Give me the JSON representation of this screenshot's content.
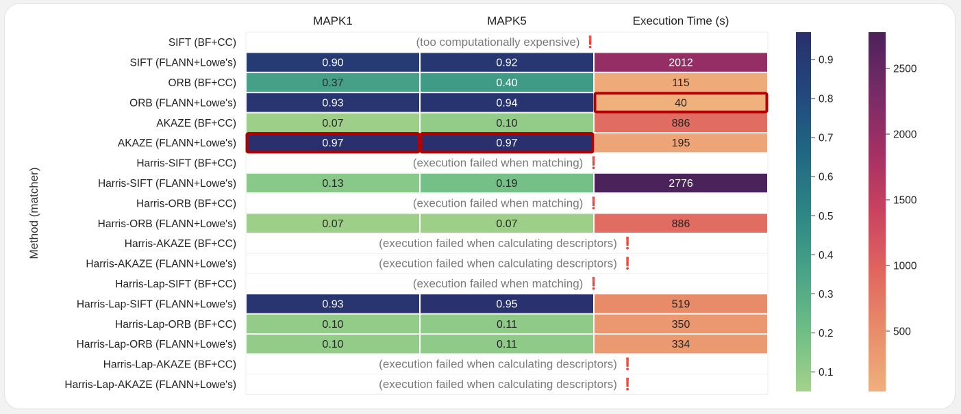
{
  "chart_data": {
    "type": "heatmap",
    "ylabel": "Method (matcher)",
    "columns": [
      "MAPK1",
      "MAPK5",
      "Execution Time (s)"
    ],
    "rows": [
      "SIFT (BF+CC)",
      "SIFT (FLANN+Lowe's)",
      "ORB (BF+CC)",
      "ORB (FLANN+Lowe's)",
      "AKAZE (BF+CC)",
      "AKAZE (FLANN+Lowe's)",
      "Harris-SIFT (BF+CC)",
      "Harris-SIFT (FLANN+Lowe's)",
      "Harris-ORB (BF+CC)",
      "Harris-ORB (FLANN+Lowe's)",
      "Harris-AKAZE (BF+CC)",
      "Harris-AKAZE (FLANN+Lowe's)",
      "Harris-Lap-SIFT (BF+CC)",
      "Harris-Lap-SIFT (FLANN+Lowe's)",
      "Harris-Lap-ORB (BF+CC)",
      "Harris-Lap-ORB (FLANN+Lowe's)",
      "Harris-Lap-AKAZE (BF+CC)",
      "Harris-Lap-AKAZE (FLANN+Lowe's)"
    ],
    "values": [
      [
        null,
        null,
        null
      ],
      [
        0.9,
        0.92,
        2012
      ],
      [
        0.37,
        0.4,
        115
      ],
      [
        0.93,
        0.94,
        40
      ],
      [
        0.07,
        0.1,
        886
      ],
      [
        0.97,
        0.97,
        195
      ],
      [
        null,
        null,
        null
      ],
      [
        0.13,
        0.19,
        2776
      ],
      [
        null,
        null,
        null
      ],
      [
        0.07,
        0.07,
        886
      ],
      [
        null,
        null,
        null
      ],
      [
        null,
        null,
        null
      ],
      [
        null,
        null,
        null
      ],
      [
        0.93,
        0.95,
        519
      ],
      [
        0.1,
        0.11,
        350
      ],
      [
        0.1,
        0.11,
        334
      ],
      [
        null,
        null,
        null
      ],
      [
        null,
        null,
        null
      ]
    ],
    "value_labels": [
      [
        null,
        null,
        null
      ],
      [
        "0.90",
        "0.92",
        "2012"
      ],
      [
        "0.37",
        "0.40",
        "115"
      ],
      [
        "0.93",
        "0.94",
        "40"
      ],
      [
        "0.07",
        "0.10",
        "886"
      ],
      [
        "0.97",
        "0.97",
        "195"
      ],
      [
        null,
        null,
        null
      ],
      [
        "0.13",
        "0.19",
        "2776"
      ],
      [
        null,
        null,
        null
      ],
      [
        "0.07",
        "0.07",
        "886"
      ],
      [
        null,
        null,
        null
      ],
      [
        null,
        null,
        null
      ],
      [
        null,
        null,
        null
      ],
      [
        "0.93",
        "0.95",
        "519"
      ],
      [
        "0.10",
        "0.11",
        "350"
      ],
      [
        "0.10",
        "0.11",
        "334"
      ],
      [
        null,
        null,
        null
      ],
      [
        null,
        null,
        null
      ]
    ],
    "row_notes": {
      "0": "(too computationally expensive)",
      "6": "(execution failed when matching)",
      "8": "(execution failed when matching)",
      "10": "(execution failed when calculating descriptors)",
      "11": "(execution failed when calculating descriptors)",
      "12": "(execution failed when matching)",
      "16": "(execution failed when calculating descriptors)",
      "17": "(execution failed when calculating descriptors)"
    },
    "note_marker": "❗",
    "highlighted_cells": [
      [
        3,
        2
      ],
      [
        5,
        0
      ],
      [
        5,
        1
      ]
    ],
    "highlight_color": "#b30000",
    "colorbars": [
      {
        "name": "mapk",
        "palette": "crest",
        "range": [
          0.05,
          0.97
        ],
        "ticks": [
          0.1,
          0.2,
          0.3,
          0.4,
          0.5,
          0.6,
          0.7,
          0.8,
          0.9
        ],
        "tick_labels": [
          "0.1",
          "0.2",
          "0.3",
          "0.4",
          "0.5",
          "0.6",
          "0.7",
          "0.8",
          "0.9"
        ],
        "stops": [
          "#a4d28a",
          "#6fbe86",
          "#48a387",
          "#2d8585",
          "#206783",
          "#22477d",
          "#2a2f6d"
        ]
      },
      {
        "name": "time",
        "palette": "flare",
        "range": [
          40,
          2776
        ],
        "ticks": [
          500,
          1000,
          1500,
          2000,
          2500
        ],
        "tick_labels": [
          "500",
          "1000",
          "1500",
          "2000",
          "2500"
        ],
        "stops": [
          "#f0b07c",
          "#e88d6a",
          "#e0665f",
          "#c9435f",
          "#a33064",
          "#772b66",
          "#4b2259"
        ]
      }
    ]
  }
}
